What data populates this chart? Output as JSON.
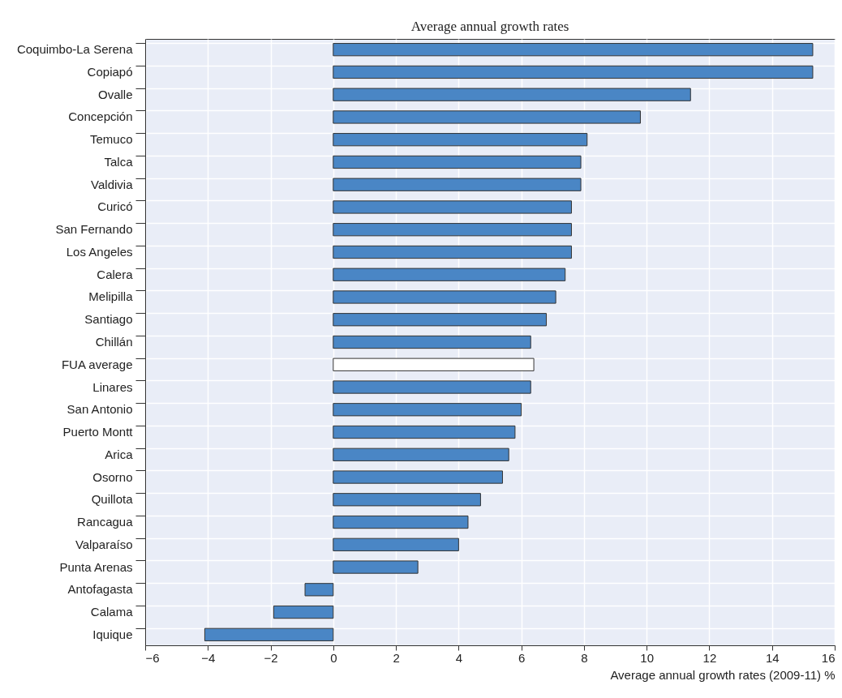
{
  "chart_data": {
    "type": "bar",
    "orientation": "horizontal",
    "subtitle": "Average annual growth rates",
    "xlabel": "Average annual growth rates (2009-11) %",
    "categories": [
      "Coquimbo-La Serena",
      "Copiapó",
      "Ovalle",
      "Concepción",
      "Temuco",
      "Talca",
      "Valdivia",
      "Curicó",
      "San Fernando",
      "Los Angeles",
      "Calera",
      "Melipilla",
      "Santiago",
      "Chillán",
      "FUA average",
      "Linares",
      "San Antonio",
      "Puerto Montt",
      "Arica",
      "Osorno",
      "Quillota",
      "Rancagua",
      "Valparaíso",
      "Punta Arenas",
      "Antofagasta",
      "Calama",
      "Iquique"
    ],
    "values": [
      15.3,
      15.3,
      11.4,
      9.8,
      8.1,
      7.9,
      7.9,
      7.6,
      7.6,
      7.6,
      7.4,
      7.1,
      6.8,
      6.3,
      6.4,
      6.3,
      6.0,
      5.8,
      5.6,
      5.4,
      4.7,
      4.3,
      4.0,
      2.7,
      -0.9,
      -1.9,
      -4.1
    ],
    "colors": [
      "#4a86c5",
      "#4a86c5",
      "#4a86c5",
      "#4a86c5",
      "#4a86c5",
      "#4a86c5",
      "#4a86c5",
      "#4a86c5",
      "#4a86c5",
      "#4a86c5",
      "#4a86c5",
      "#4a86c5",
      "#4a86c5",
      "#4a86c5",
      "#ffffff",
      "#4a86c5",
      "#4a86c5",
      "#4a86c5",
      "#4a86c5",
      "#4a86c5",
      "#4a86c5",
      "#4a86c5",
      "#4a86c5",
      "#4a86c5",
      "#4a86c5",
      "#4a86c5",
      "#4a86c5"
    ],
    "xlim": [
      -6,
      16
    ],
    "xticks": [
      -6,
      -4,
      -2,
      0,
      2,
      4,
      6,
      8,
      10,
      12,
      14,
      16
    ],
    "grid": true
  }
}
